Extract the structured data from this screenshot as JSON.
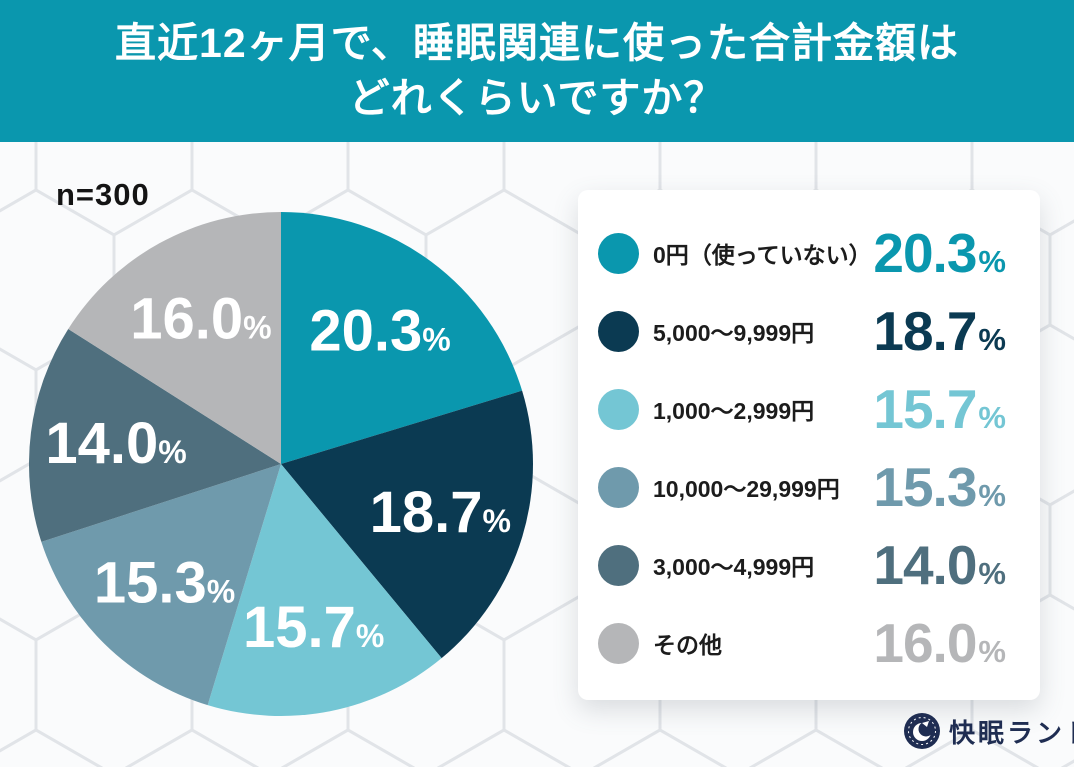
{
  "header": {
    "title_line1": "直近12ヶ月で、睡眠関連に使った合計金額は",
    "title_line2": "どれくらいですか？",
    "bg_color": "#0a97ae"
  },
  "sample_size_label": "n=300",
  "percent_sign": "%",
  "chart_data": {
    "type": "pie",
    "title": "直近12ヶ月で、睡眠関連に使った合計金額はどれくらいですか？",
    "sample_size": "n=300",
    "start_angle_deg": -90,
    "direction": "clockwise",
    "legend_position": "right",
    "segments": [
      {
        "label": "0円（使っていない）",
        "value": 20.3,
        "display": "20.3",
        "color": "#0a97ae"
      },
      {
        "label": "5,000〜9,999円",
        "value": 18.7,
        "display": "18.7",
        "color": "#0b3a52"
      },
      {
        "label": "1,000〜2,999円",
        "value": 15.7,
        "display": "15.7",
        "color": "#74c6d4"
      },
      {
        "label": "10,000〜29,999円",
        "value": 15.3,
        "display": "15.3",
        "color": "#6f9aac"
      },
      {
        "label": "3,000〜4,999円",
        "value": 14.0,
        "display": "14.0",
        "color": "#4f6f7e"
      },
      {
        "label": "その他",
        "value": 16.0,
        "display": "16.0",
        "color": "#b5b6b8"
      }
    ]
  },
  "footer": {
    "logo_text": "快眠ランド",
    "logo_color": "#1f2d52"
  }
}
